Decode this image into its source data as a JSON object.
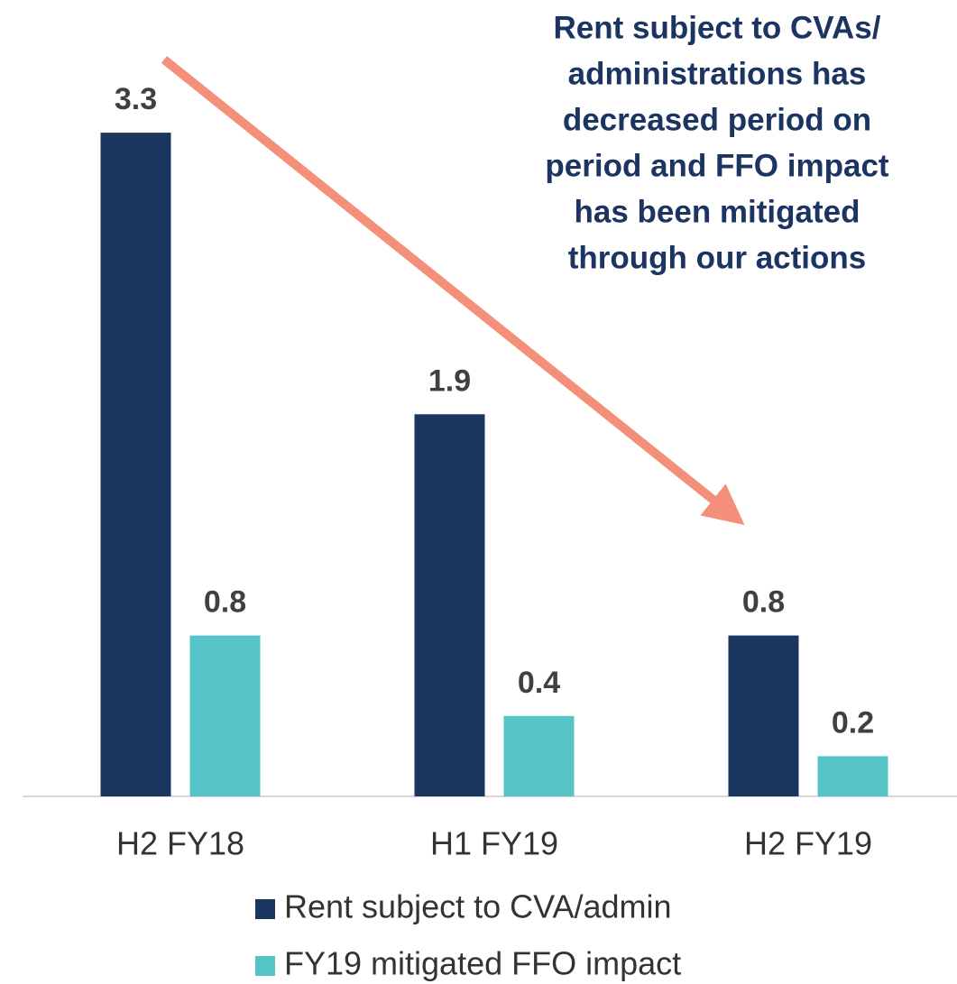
{
  "chart_data": {
    "type": "bar",
    "annotation": [
      "Rent subject to CVAs/",
      "administrations has",
      "decreased period on",
      "period and FFO impact",
      "has been mitigated",
      "through our actions"
    ],
    "categories": [
      "H2 FY18",
      "H1 FY19",
      "H2 FY19"
    ],
    "series": [
      {
        "name": "Rent subject to CVA/admin",
        "color": "#1a3560",
        "values": [
          3.3,
          1.9,
          0.8
        ]
      },
      {
        "name": "FY19 mitigated FFO impact",
        "color": "#56c3c7",
        "values": [
          0.8,
          0.4,
          0.2
        ]
      }
    ],
    "legend": "bottom"
  }
}
